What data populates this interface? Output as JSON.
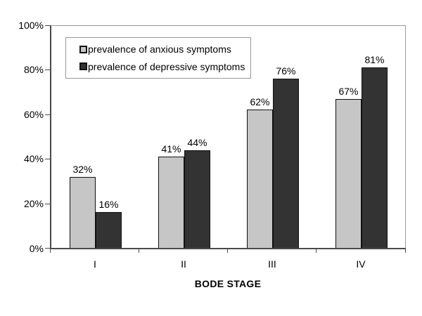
{
  "chart_data": {
    "type": "bar",
    "title": "",
    "categories": [
      "I",
      "II",
      "III",
      "IV"
    ],
    "series": [
      {
        "name": "prevalence of anxious symptoms",
        "values": [
          32,
          41,
          62,
          67
        ],
        "labels": [
          "32%",
          "41%",
          "62%",
          "67%"
        ],
        "color": "#c6c6c6"
      },
      {
        "name": "prevalence of depressive symptoms",
        "values": [
          16,
          44,
          76,
          81
        ],
        "labels": [
          "16%",
          "44%",
          "76%",
          "81%"
        ],
        "color": "#333333"
      }
    ],
    "xlabel": "BODE STAGE",
    "ylabel": "",
    "ylim": [
      0,
      100
    ],
    "yticks": [
      "0%",
      "20%",
      "40%",
      "60%",
      "80%",
      "100%"
    ],
    "grid": false,
    "legend_position": "top-left-inside",
    "colors": {
      "axis": "#4a4a4a",
      "plot_border": "#999999",
      "bar_outline": "#111111",
      "background": "#ffffff"
    }
  }
}
